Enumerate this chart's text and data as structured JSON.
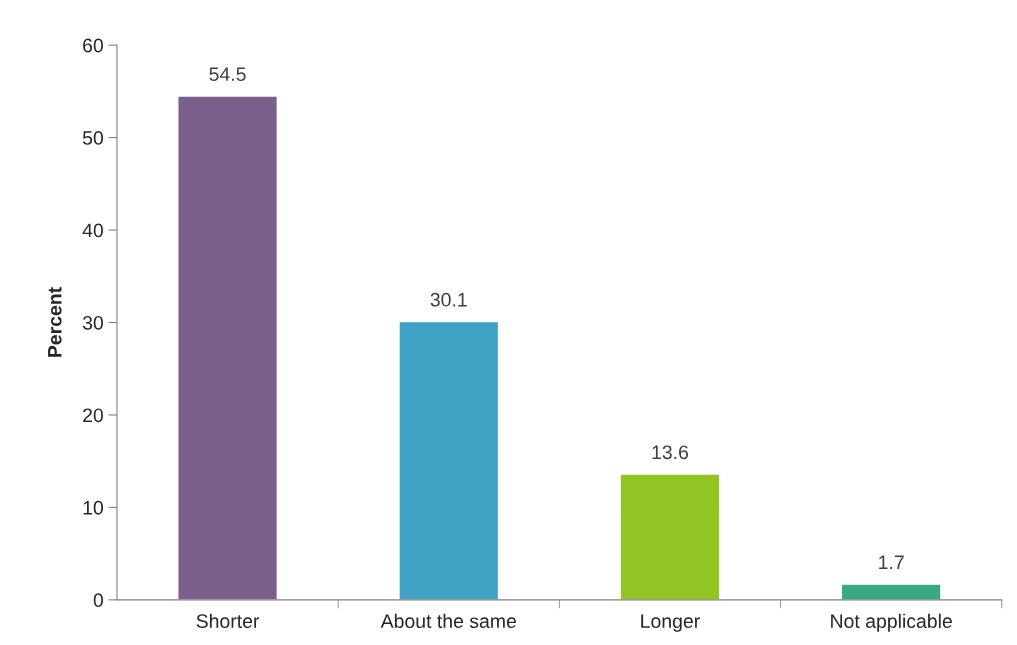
{
  "chart_data": {
    "type": "bar",
    "ylabel": "Percent",
    "categories": [
      "Shorter",
      "About the same",
      "Longer",
      "Not applicable"
    ],
    "values": [
      54.5,
      30.1,
      13.6,
      1.7
    ],
    "colors": [
      "#7a5f8a",
      "#3fa2c4",
      "#92c523",
      "#35a982"
    ],
    "ylim": [
      0,
      60
    ],
    "yticks": [
      0,
      10,
      20,
      30,
      40,
      50,
      60
    ],
    "data_labels": true,
    "grid": false
  }
}
